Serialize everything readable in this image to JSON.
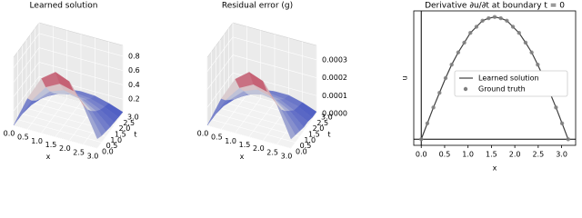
{
  "chart_data": [
    {
      "type": "surface3d",
      "title": "Learned solution",
      "xlabel": "x",
      "ylabel": "t",
      "colormap": "coolwarm",
      "x": [
        0,
        0.5,
        1,
        1.5,
        2,
        2.5,
        3
      ],
      "y": [
        0,
        0.5,
        1,
        1.5,
        2,
        2.5,
        3
      ],
      "z": [
        [
          0,
          0.43,
          0.76,
          0.9,
          0.82,
          0.54,
          0.13
        ],
        [
          0,
          0.32,
          0.56,
          0.66,
          0.61,
          0.4,
          0.09
        ],
        [
          0,
          0.24,
          0.42,
          0.49,
          0.45,
          0.3,
          0.07
        ],
        [
          0,
          0.18,
          0.31,
          0.36,
          0.33,
          0.22,
          0.05
        ],
        [
          0,
          0.13,
          0.23,
          0.27,
          0.25,
          0.16,
          0.04
        ],
        [
          0,
          0.1,
          0.17,
          0.2,
          0.18,
          0.12,
          0.03
        ],
        [
          0,
          0.07,
          0.13,
          0.15,
          0.14,
          0.09,
          0.02
        ]
      ],
      "xlim": [
        0,
        3
      ],
      "ylim": [
        0,
        3
      ],
      "zlim": [
        0,
        0.95
      ],
      "xticks": [
        {
          "value": 0,
          "label": "0.0"
        },
        0.5,
        {
          "value": 1,
          "label": "1.0"
        },
        1.5,
        {
          "value": 2,
          "label": "2.0"
        },
        2.5,
        {
          "value": 3,
          "label": "3.0"
        }
      ],
      "yticks": [
        {
          "value": 0,
          "label": "0.0"
        },
        0.5,
        {
          "value": 1,
          "label": "1.0"
        },
        1.5,
        {
          "value": 2,
          "label": "2.0"
        },
        2.5,
        {
          "value": 3,
          "label": "3.0"
        }
      ],
      "zticks": [
        0.2,
        0.4,
        0.6,
        0.8
      ]
    },
    {
      "type": "surface3d",
      "title": "Residual error (g)",
      "xlabel": "x",
      "ylabel": "t",
      "colormap": "coolwarm",
      "x": [
        0,
        0.5,
        1,
        1.5,
        2,
        2.5,
        3
      ],
      "y": [
        0,
        0.5,
        1,
        1.5,
        2,
        2.5,
        3
      ],
      "z": [
        [
          0,
          0.00017,
          0.0003,
          0.00036,
          0.00033,
          0.00022,
          5e-05
        ],
        [
          0,
          0.00013,
          0.00022,
          0.00026,
          0.00024,
          0.00016,
          4e-05
        ],
        [
          0,
          0.0001,
          0.00017,
          0.0002,
          0.00018,
          0.00012,
          3e-05
        ],
        [
          0,
          7e-05,
          0.00012,
          0.00014,
          0.00013,
          9e-05,
          2e-05
        ],
        [
          0,
          5e-05,
          9e-05,
          0.00011,
          0.0001,
          6e-05,
          2e-05
        ],
        [
          0,
          4e-05,
          7e-05,
          8e-05,
          7e-05,
          5e-05,
          1e-05
        ],
        [
          0,
          3e-05,
          5e-05,
          6e-05,
          6e-05,
          4e-05,
          1e-05
        ]
      ],
      "xlim": [
        0,
        3
      ],
      "ylim": [
        0,
        3
      ],
      "zlim": [
        0,
        0.00038
      ],
      "xticks": [
        {
          "value": 0,
          "label": "0.0"
        },
        0.5,
        {
          "value": 1,
          "label": "1.0"
        },
        1.5,
        {
          "value": 2,
          "label": "2.0"
        },
        2.5,
        {
          "value": 3,
          "label": "3.0"
        }
      ],
      "yticks": [
        {
          "value": 0,
          "label": "0.0"
        },
        0.5,
        {
          "value": 1,
          "label": "1.0"
        },
        1.5,
        {
          "value": 2,
          "label": "2.0"
        },
        2.5,
        {
          "value": 3,
          "label": "3.0"
        }
      ],
      "zticks": [
        {
          "value": 0,
          "label": "0.0000"
        },
        {
          "value": 0.0001,
          "label": "0.0001"
        },
        {
          "value": 0.0002,
          "label": "0.0002"
        },
        {
          "value": 0.0003,
          "label": "0.0003"
        }
      ]
    },
    {
      "type": "line",
      "title": "Derivative ∂u/∂t at boundary t = 0",
      "xlabel": "x",
      "ylabel": "u",
      "zero_lines": true,
      "legend": "center right",
      "x": [
        0,
        0.13,
        0.26,
        0.39,
        0.52,
        0.65,
        0.79,
        0.92,
        1.05,
        1.18,
        1.31,
        1.44,
        1.57,
        1.7,
        1.83,
        1.96,
        2.09,
        2.23,
        2.36,
        2.49,
        2.62,
        2.75,
        2.88,
        3.01,
        3.14
      ],
      "series": [
        {
          "name": "Learned solution",
          "color": "#404040",
          "mark": "line",
          "values": [
            0,
            0.13,
            0.26,
            0.38,
            0.5,
            0.61,
            0.71,
            0.79,
            0.87,
            0.92,
            0.97,
            0.99,
            1.0,
            0.99,
            0.97,
            0.92,
            0.87,
            0.79,
            0.71,
            0.61,
            0.5,
            0.38,
            0.26,
            0.13,
            0
          ]
        },
        {
          "name": "Ground truth",
          "color": "#7f7f7f",
          "mark": "scatter",
          "values": [
            0,
            0.13,
            0.26,
            0.38,
            0.5,
            0.61,
            0.71,
            0.79,
            0.87,
            0.92,
            0.97,
            0.99,
            1.0,
            0.99,
            0.97,
            0.92,
            0.87,
            0.79,
            0.71,
            0.61,
            0.5,
            0.38,
            0.26,
            0.13,
            0
          ]
        }
      ],
      "xlim": [
        -0.16,
        3.3
      ],
      "ylim": [
        -0.05,
        1.05
      ],
      "xticks": [
        {
          "value": 0,
          "label": "0.0"
        },
        0.5,
        {
          "value": 1,
          "label": "1.0"
        },
        1.5,
        {
          "value": 2,
          "label": "2.0"
        },
        2.5,
        {
          "value": 3,
          "label": "3.0"
        }
      ]
    }
  ]
}
